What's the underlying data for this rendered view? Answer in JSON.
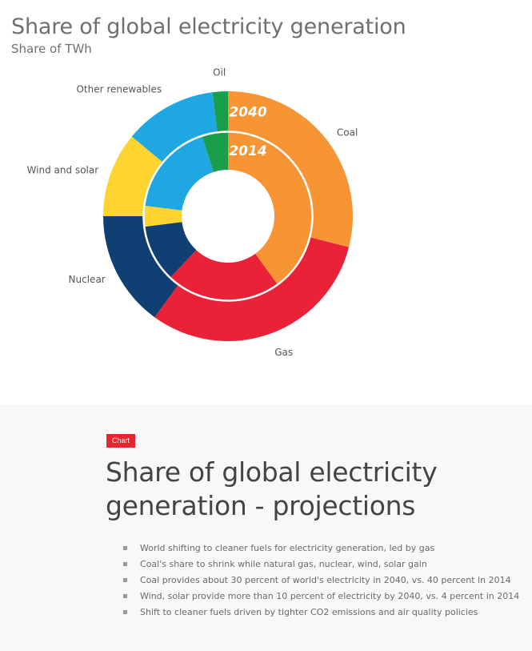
{
  "chart_data": {
    "type": "pie",
    "variant": "nested-donut",
    "title": "Share of global electricity generation",
    "subtitle": "Share of TWh",
    "rings": [
      {
        "label": "2040",
        "position": "outer",
        "values": [
          29,
          31,
          15,
          11,
          12,
          2
        ]
      },
      {
        "label": "2014",
        "position": "inner",
        "values": [
          40,
          22,
          11,
          4,
          18,
          5
        ]
      }
    ],
    "categories": [
      "Coal",
      "Gas",
      "Nuclear",
      "Wind and solar",
      "Other renewables",
      "Oil"
    ],
    "colors": [
      "#f79433",
      "#ea2237",
      "#0f3f73",
      "#fdd430",
      "#1ea7e1",
      "#1a9e4b"
    ]
  },
  "article": {
    "badge": "Chart",
    "headline": "Share of global electricity generation - projections",
    "bullets": [
      "World shifting to cleaner fuels for electricity generation, led by gas",
      "Coal's share to shrink while natural gas, nuclear, wind, solar gain",
      "Coal provides about 30 percent of world's electricity in 2040, vs. 40 percent in 2014",
      "Wind, solar provide more than 10 percent of electricity by 2040, vs. 4 percent in 2014",
      "Shift to cleaner fuels driven by tighter CO2 emissions and air quality policies"
    ]
  }
}
